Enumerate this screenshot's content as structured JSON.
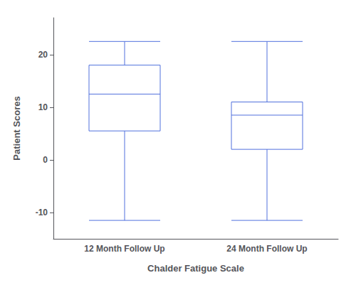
{
  "chart_data": {
    "type": "boxplot",
    "categories": [
      "12 Month Follow Up",
      "24 Month Follow Up"
    ],
    "values": [
      {
        "whisker_low": -11.5,
        "q1": 5.5,
        "median": 12.5,
        "q3": 18.0,
        "whisker_high": 22.5
      },
      {
        "whisker_low": -11.5,
        "q1": 2.0,
        "median": 8.5,
        "q3": 11.0,
        "whisker_high": 22.5
      }
    ],
    "xlabel": "Chalder Fatigue Scale",
    "ylabel": "Patient Scores",
    "ylim": [
      -15,
      27
    ],
    "yticks": [
      -10,
      0,
      10,
      20
    ],
    "grid": false
  }
}
